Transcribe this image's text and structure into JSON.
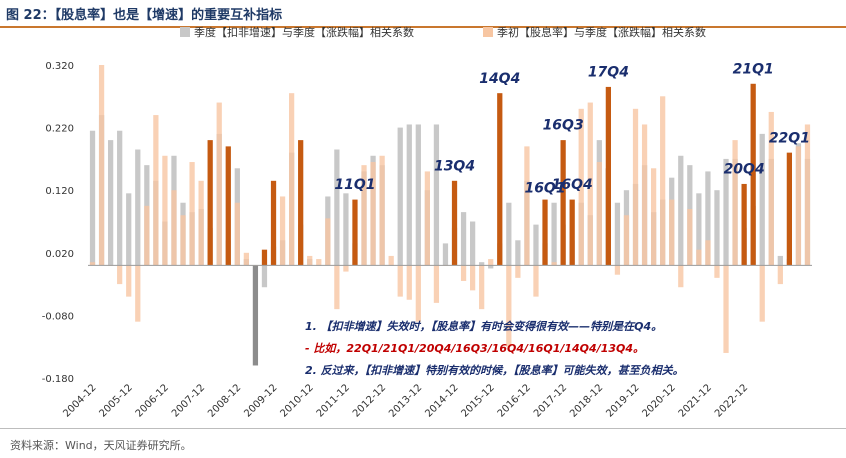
{
  "title": "图 22：【股息率】也是【增速】的重要互补指标",
  "source": "资料来源：Wind，天风证券研究所。",
  "chart_data": {
    "type": "bar",
    "series": [
      {
        "name": "季度【扣非增速】与季度【涨跌幅】相关系数",
        "color": "#c8c8c8",
        "highlight_color": "#8c8c8c"
      },
      {
        "name": "季初【股息率】与季度【涨跌幅】相关系数",
        "color": "#f7c6a2",
        "highlight_color": "#c55a11"
      }
    ],
    "yticks": [
      "0.320",
      "0.220",
      "0.120",
      "0.020",
      "-0.080",
      "-0.180"
    ],
    "ylim": [
      -0.18,
      0.32
    ],
    "xlabels": [
      "2004-12",
      "2005-12",
      "2006-12",
      "2007-12",
      "2008-12",
      "2009-12",
      "2010-12",
      "2011-12",
      "2012-12",
      "2013-12",
      "2014-12",
      "2015-12",
      "2016-12",
      "2017-12",
      "2018-12",
      "2019-12",
      "2020-12",
      "2021-12",
      "2022-12"
    ],
    "x_first_index": 0,
    "x_step": 4,
    "bars": [
      {
        "a": 0.215,
        "b": 0.005
      },
      {
        "a": 0.24,
        "b": 0.32
      },
      {
        "a": 0.2,
        "b": 0.0
      },
      {
        "a": 0.215,
        "b": -0.03
      },
      {
        "a": 0.115,
        "b": -0.05
      },
      {
        "a": 0.185,
        "b": -0.09
      },
      {
        "a": 0.16,
        "b": 0.095
      },
      {
        "a": 0.135,
        "b": 0.24
      },
      {
        "a": 0.07,
        "b": 0.175
      },
      {
        "a": 0.175,
        "b": 0.12
      },
      {
        "a": 0.1,
        "b": 0.08
      },
      {
        "a": 0.085,
        "b": 0.165
      },
      {
        "a": 0.09,
        "b": 0.135
      },
      {
        "a": 0.06,
        "b": 0.2,
        "hb": true
      },
      {
        "a": 0.21,
        "b": 0.26
      },
      {
        "a": 0.04,
        "b": 0.19,
        "hb": true
      },
      {
        "a": 0.155,
        "b": 0.1
      },
      {
        "a": 0.01,
        "b": 0.02
      },
      {
        "a": -0.16,
        "b": 0.0,
        "ha": true
      },
      {
        "a": -0.035,
        "b": 0.025,
        "hb": true
      },
      {
        "a": 0.03,
        "b": 0.135,
        "hb": true
      },
      {
        "a": 0.04,
        "b": 0.11
      },
      {
        "a": 0.18,
        "b": 0.275
      },
      {
        "a": 0.065,
        "b": 0.2,
        "hb": true
      },
      {
        "a": 0.01,
        "b": 0.015
      },
      {
        "a": 0.0,
        "b": 0.01
      },
      {
        "a": 0.11,
        "b": 0.075
      },
      {
        "a": 0.185,
        "b": -0.07
      },
      {
        "a": 0.115,
        "b": -0.01
      },
      {
        "a": 0.035,
        "b": 0.105,
        "hb": true
      },
      {
        "a": 0.15,
        "b": 0.16
      },
      {
        "a": 0.175,
        "b": 0.165
      },
      {
        "a": 0.16,
        "b": 0.175
      },
      {
        "a": 0.0,
        "b": 0.015
      },
      {
        "a": 0.22,
        "b": -0.05
      },
      {
        "a": 0.225,
        "b": -0.055
      },
      {
        "a": 0.225,
        "b": -0.09
      },
      {
        "a": 0.12,
        "b": 0.15
      },
      {
        "a": 0.225,
        "b": -0.06
      },
      {
        "a": 0.035,
        "b": 0.0
      },
      {
        "a": 0.06,
        "b": 0.135,
        "hb": true
      },
      {
        "a": 0.085,
        "b": -0.025
      },
      {
        "a": 0.07,
        "b": -0.04
      },
      {
        "a": 0.005,
        "b": -0.07
      },
      {
        "a": -0.005,
        "b": 0.01
      },
      {
        "a": 0.035,
        "b": 0.275,
        "hb": true
      },
      {
        "a": 0.1,
        "b": -0.13
      },
      {
        "a": 0.04,
        "b": -0.02
      },
      {
        "a": 0.135,
        "b": 0.19
      },
      {
        "a": 0.065,
        "b": -0.05
      },
      {
        "a": 0.035,
        "b": 0.105,
        "hb": true
      },
      {
        "a": 0.1,
        "b": 0.005
      },
      {
        "a": 0.065,
        "b": 0.2,
        "hb": true
      },
      {
        "a": 0.04,
        "b": 0.105,
        "hb": true
      },
      {
        "a": 0.1,
        "b": 0.25
      },
      {
        "a": 0.08,
        "b": 0.26
      },
      {
        "a": 0.2,
        "b": 0.165
      },
      {
        "a": 0.155,
        "b": 0.285,
        "ha": true,
        "hb": true
      },
      {
        "a": 0.1,
        "b": -0.015
      },
      {
        "a": 0.12,
        "b": 0.08
      },
      {
        "a": 0.13,
        "b": 0.25
      },
      {
        "a": 0.16,
        "b": 0.225
      },
      {
        "a": 0.085,
        "b": 0.155
      },
      {
        "a": 0.105,
        "b": 0.27
      },
      {
        "a": 0.14,
        "b": 0.105
      },
      {
        "a": 0.175,
        "b": -0.035
      },
      {
        "a": 0.16,
        "b": 0.09
      },
      {
        "a": 0.115,
        "b": 0.025
      },
      {
        "a": 0.15,
        "b": 0.04
      },
      {
        "a": 0.12,
        "b": -0.02
      },
      {
        "a": 0.17,
        "b": -0.14
      },
      {
        "a": 0.17,
        "b": 0.2
      },
      {
        "a": 0.06,
        "b": 0.13,
        "hb": true
      },
      {
        "a": 0.095,
        "b": 0.29,
        "hb": true
      },
      {
        "a": 0.21,
        "b": -0.09
      },
      {
        "a": 0.17,
        "b": 0.245
      },
      {
        "a": 0.015,
        "b": -0.03
      },
      {
        "a": 0.01,
        "b": 0.18,
        "hb": true
      },
      {
        "a": 0.195,
        "b": 0.19
      },
      {
        "a": 0.17,
        "b": 0.225
      }
    ],
    "annotations": [
      {
        "text": "14Q4",
        "index": 45,
        "value": 0.282
      },
      {
        "text": "17Q4",
        "index": 57,
        "value": 0.292
      },
      {
        "text": "21Q1",
        "index": 73,
        "value": 0.297
      },
      {
        "text": "16Q3",
        "index": 52,
        "value": 0.207
      },
      {
        "text": "22Q1",
        "index": 77,
        "value": 0.187
      },
      {
        "text": "13Q4",
        "index": 40,
        "value": 0.142
      },
      {
        "text": "16Q4",
        "index": 53,
        "value": 0.112
      },
      {
        "text": "20Q4",
        "index": 72,
        "value": 0.137
      },
      {
        "text": "11Q1",
        "index": 29,
        "value": 0.112
      },
      {
        "text": "16Q1",
        "index": 50,
        "value": 0.107
      }
    ],
    "notes": [
      "1. 【扣非增速】失效时，【股息率】有时会变得很有效——特别是在Q4。",
      "- 比如，22Q1/21Q1/20Q4/16Q3/16Q4/16Q1/14Q4/13Q4。",
      "2. 反过来，【扣非增速】特别有效的时候，【股息率】可能失效，甚至负相关。"
    ]
  }
}
